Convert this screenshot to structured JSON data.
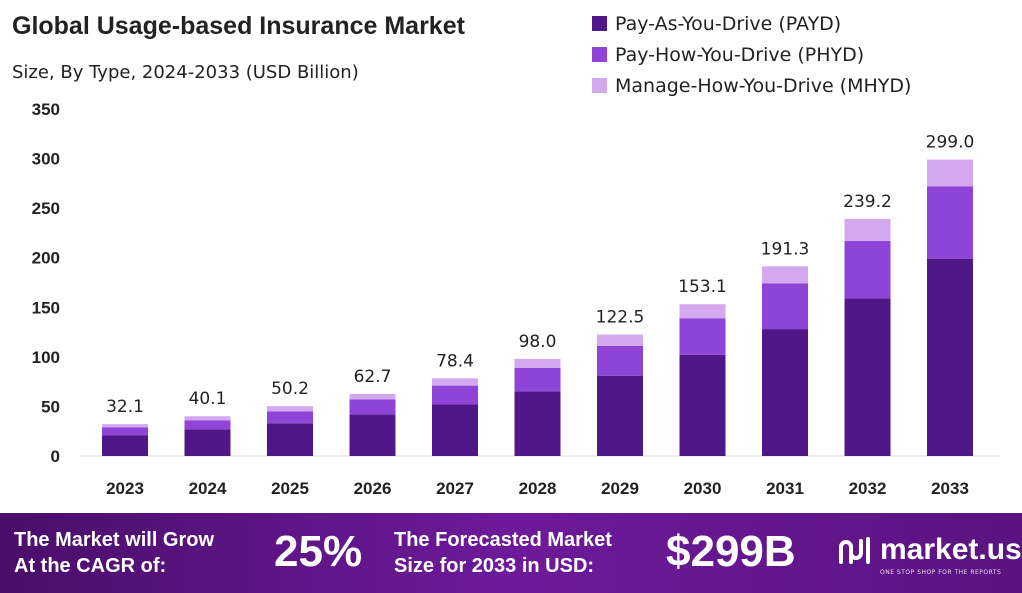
{
  "chart_data": {
    "type": "bar",
    "stacked": true,
    "title": "Global Usage-based Insurance Market",
    "subtitle": "Size, By Type, 2024-2033 (USD Billion)",
    "categories": [
      "2023",
      "2024",
      "2025",
      "2026",
      "2027",
      "2028",
      "2029",
      "2030",
      "2031",
      "2032",
      "2033"
    ],
    "totals": [
      "32.1",
      "40.1",
      "50.2",
      "62.7",
      "78.4",
      "98.0",
      "122.5",
      "153.1",
      "191.3",
      "239.2",
      "299.0"
    ],
    "series": [
      {
        "name": "Pay-As-You-Drive (PAYD)",
        "color": "#4f1787",
        "values": [
          21,
          27,
          33,
          42,
          52,
          65,
          81,
          102,
          128,
          159,
          199
        ]
      },
      {
        "name": "Pay-How-You-Drive (PHYD)",
        "color": "#8e44d6",
        "values": [
          8,
          9,
          12,
          15,
          19,
          24,
          30,
          37,
          46,
          58,
          73
        ]
      },
      {
        "name": "Manage-How-You-Drive (MHYD)",
        "color": "#d3a8ee",
        "values": [
          3.1,
          4.1,
          5.2,
          5.7,
          7.4,
          9.0,
          11.5,
          14.1,
          17.3,
          22.2,
          27.0
        ]
      }
    ],
    "yticks": [
      "0",
      "50",
      "100",
      "150",
      "200",
      "250",
      "300",
      "350"
    ],
    "ylim": [
      0,
      350
    ],
    "legend_position": "top-right",
    "grid": false
  },
  "banner": {
    "cagr_text_line1": "The Market will Grow",
    "cagr_text_line2": "At the CAGR of:",
    "cagr_value": "25%",
    "forecast_text_line1": "The Forecasted Market",
    "forecast_text_line2": "Size for 2033 in USD:",
    "forecast_value": "$299B",
    "logo_text": "market.us",
    "logo_tagline": "ONE STOP SHOP FOR THE REPORTS"
  }
}
